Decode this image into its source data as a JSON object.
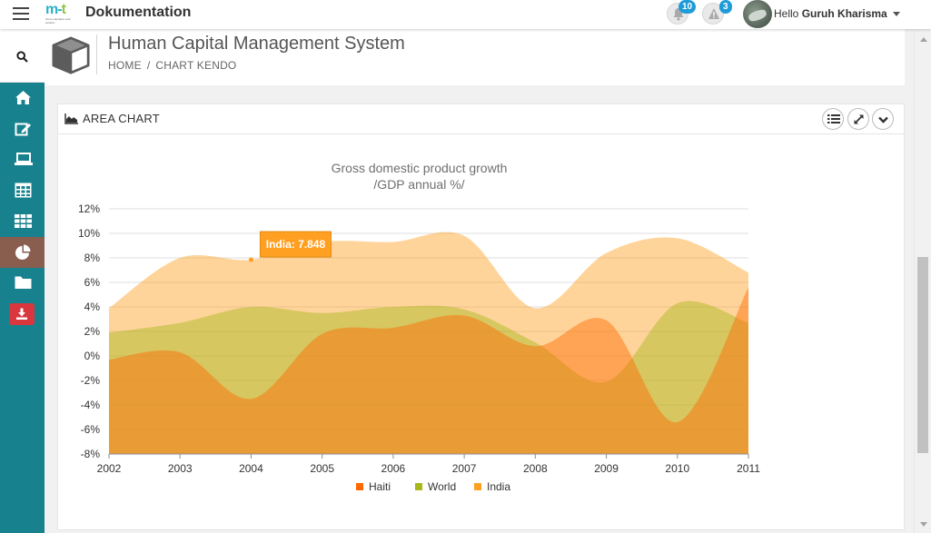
{
  "header": {
    "app_title": "Dokumentation",
    "logo_text": "m-t",
    "logo_caption": "home education web solution",
    "notifications": [
      {
        "name": "bell",
        "count": "10"
      },
      {
        "name": "warning",
        "count": "3"
      }
    ],
    "user_prefix": "Hello",
    "user_name": "Guruh Kharisma"
  },
  "sidebar": {
    "items": [
      {
        "icon": "search-icon"
      },
      {
        "icon": "home-icon"
      },
      {
        "icon": "edit-icon"
      },
      {
        "icon": "laptop-icon"
      },
      {
        "icon": "table-icon"
      },
      {
        "icon": "grid-icon"
      },
      {
        "icon": "pie-chart-icon",
        "active": true
      },
      {
        "icon": "folder-icon"
      },
      {
        "icon": "download-icon"
      }
    ]
  },
  "page": {
    "title": "Human Capital Management System",
    "breadcrumb": [
      "HOME",
      "CHART KENDO"
    ],
    "breadcrumb_separator": "/"
  },
  "panel": {
    "title": "AREA CHART",
    "tools": [
      "list-icon",
      "expand-icon",
      "collapse-icon"
    ]
  },
  "chart_data": {
    "type": "area",
    "title_line1": "Gross domestic product growth",
    "title_line2": "/GDP annual %/",
    "categories": [
      "2002",
      "2003",
      "2004",
      "2005",
      "2006",
      "2007",
      "2008",
      "2009",
      "2010",
      "2011"
    ],
    "ylim": [
      -8,
      12
    ],
    "yticks": [
      -8,
      -6,
      -4,
      -2,
      0,
      2,
      4,
      6,
      8,
      10,
      12
    ],
    "ytick_format": "%",
    "series": [
      {
        "name": "India",
        "color": "#ffa022",
        "values": [
          3.9,
          8.0,
          7.848,
          9.3,
          9.3,
          9.8,
          3.9,
          8.4,
          9.6,
          6.8
        ]
      },
      {
        "name": "World",
        "color": "#a7b81a",
        "values": [
          1.9,
          2.7,
          4.0,
          3.5,
          4.0,
          3.8,
          1.1,
          -2.1,
          4.3,
          2.7
        ]
      },
      {
        "name": "Haiti",
        "color": "#ff6800",
        "values": [
          -0.3,
          0.3,
          -3.5,
          1.8,
          2.3,
          3.3,
          0.8,
          2.9,
          -5.4,
          5.6
        ]
      }
    ],
    "legend_position": "bottom",
    "grid": true,
    "tooltip": {
      "series": "India",
      "category": "2004",
      "text": "India: 7.848"
    }
  },
  "colors": {
    "sidebar": "#17818e",
    "sidebar_active": "#8a5e4f",
    "download": "#d9363e",
    "badge": "#1e9bd9"
  }
}
